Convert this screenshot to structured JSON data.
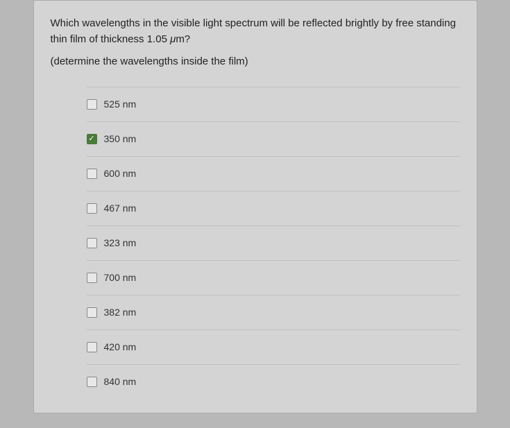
{
  "question": {
    "line1": "Which wavelengths in the visible light spectrum will be reflected brightly by free standing thin film of thickness 1.05 ",
    "thickness_unit_prefix": "μ",
    "thickness_unit_suffix": "m?",
    "line2": "(determine the wavelengths inside the film)"
  },
  "options": [
    {
      "label": "525 nm",
      "checked": false
    },
    {
      "label": "350 nm",
      "checked": true
    },
    {
      "label": "600 nm",
      "checked": false
    },
    {
      "label": "467 nm",
      "checked": false
    },
    {
      "label": "323 nm",
      "checked": false
    },
    {
      "label": "700 nm",
      "checked": false
    },
    {
      "label": "382 nm",
      "checked": false
    },
    {
      "label": "420 nm",
      "checked": false
    },
    {
      "label": "840 nm",
      "checked": false
    }
  ],
  "colors": {
    "page_bg": "#b8b8b8",
    "card_bg": "#d4d4d4",
    "border": "#aaa",
    "text": "#222",
    "option_border": "#c0c0c0",
    "checkbox_bg": "#e8e8e8",
    "checkbox_checked": "#4a7a3a",
    "checkmark": "#fff"
  }
}
